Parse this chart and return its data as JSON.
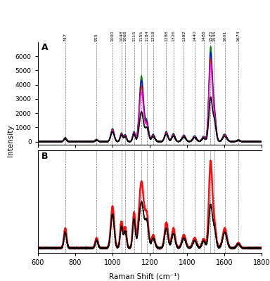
{
  "xmin": 600,
  "xmax": 1800,
  "panel_A_ylim": [
    -200,
    7000
  ],
  "panel_B_ylim": [
    -50,
    1000
  ],
  "panel_A_yticks": [
    0,
    1000,
    2000,
    3000,
    4000,
    5000,
    6000
  ],
  "xlabel": "Raman Shift (cm⁻¹)",
  "ylabel": "Intensity",
  "dashed_lines": [
    747,
    915,
    1000,
    1048,
    1068,
    1115,
    1155,
    1184,
    1218,
    1288,
    1326,
    1382,
    1440,
    1488,
    1525,
    1545,
    1601,
    1674
  ],
  "label_A": "A",
  "label_B": "B",
  "colors_A": [
    "green",
    "blue",
    "red",
    "magenta",
    "black"
  ],
  "colors_B": [
    "red",
    "black"
  ],
  "background_color": "#ffffff",
  "peaks_A": [
    747,
    915,
    1000,
    1048,
    1068,
    1115,
    1155,
    1184,
    1218,
    1288,
    1326,
    1382,
    1440,
    1488,
    1525,
    1545,
    1601,
    1674
  ],
  "widths_A": [
    7,
    7,
    9,
    7,
    7,
    7,
    11,
    9,
    9,
    9,
    9,
    10,
    10,
    9,
    9,
    9,
    11,
    9
  ],
  "heights_green": [
    280,
    150,
    900,
    600,
    480,
    700,
    4600,
    1400,
    500,
    700,
    550,
    450,
    400,
    370,
    6500,
    2100,
    520,
    120
  ],
  "heights_blue": [
    265,
    140,
    860,
    570,
    450,
    660,
    4300,
    1300,
    470,
    660,
    510,
    420,
    370,
    340,
    6100,
    1950,
    490,
    110
  ],
  "heights_red": [
    250,
    130,
    820,
    540,
    420,
    620,
    3900,
    1200,
    440,
    620,
    470,
    390,
    340,
    310,
    5700,
    1800,
    460,
    100
  ],
  "heights_magenta": [
    235,
    120,
    780,
    510,
    390,
    580,
    3500,
    1100,
    410,
    580,
    430,
    360,
    310,
    280,
    5300,
    1650,
    430,
    90
  ],
  "heights_black": [
    200,
    100,
    700,
    460,
    350,
    520,
    2100,
    950,
    370,
    530,
    390,
    320,
    280,
    250,
    3000,
    1400,
    380,
    75
  ],
  "peaks_B": [
    747,
    915,
    1000,
    1048,
    1068,
    1115,
    1155,
    1184,
    1218,
    1288,
    1326,
    1382,
    1440,
    1488,
    1525,
    1545,
    1601,
    1674
  ],
  "widths_B": [
    7,
    7,
    9,
    7,
    7,
    7,
    13,
    9,
    9,
    9,
    9,
    10,
    10,
    9,
    9,
    9,
    11,
    9
  ],
  "heights_B_red": [
    200,
    100,
    430,
    270,
    210,
    360,
    680,
    310,
    130,
    260,
    200,
    130,
    100,
    90,
    870,
    250,
    200,
    50
  ],
  "heights_B_black": [
    160,
    80,
    350,
    220,
    170,
    290,
    470,
    250,
    100,
    200,
    150,
    100,
    75,
    70,
    430,
    190,
    160,
    40
  ]
}
